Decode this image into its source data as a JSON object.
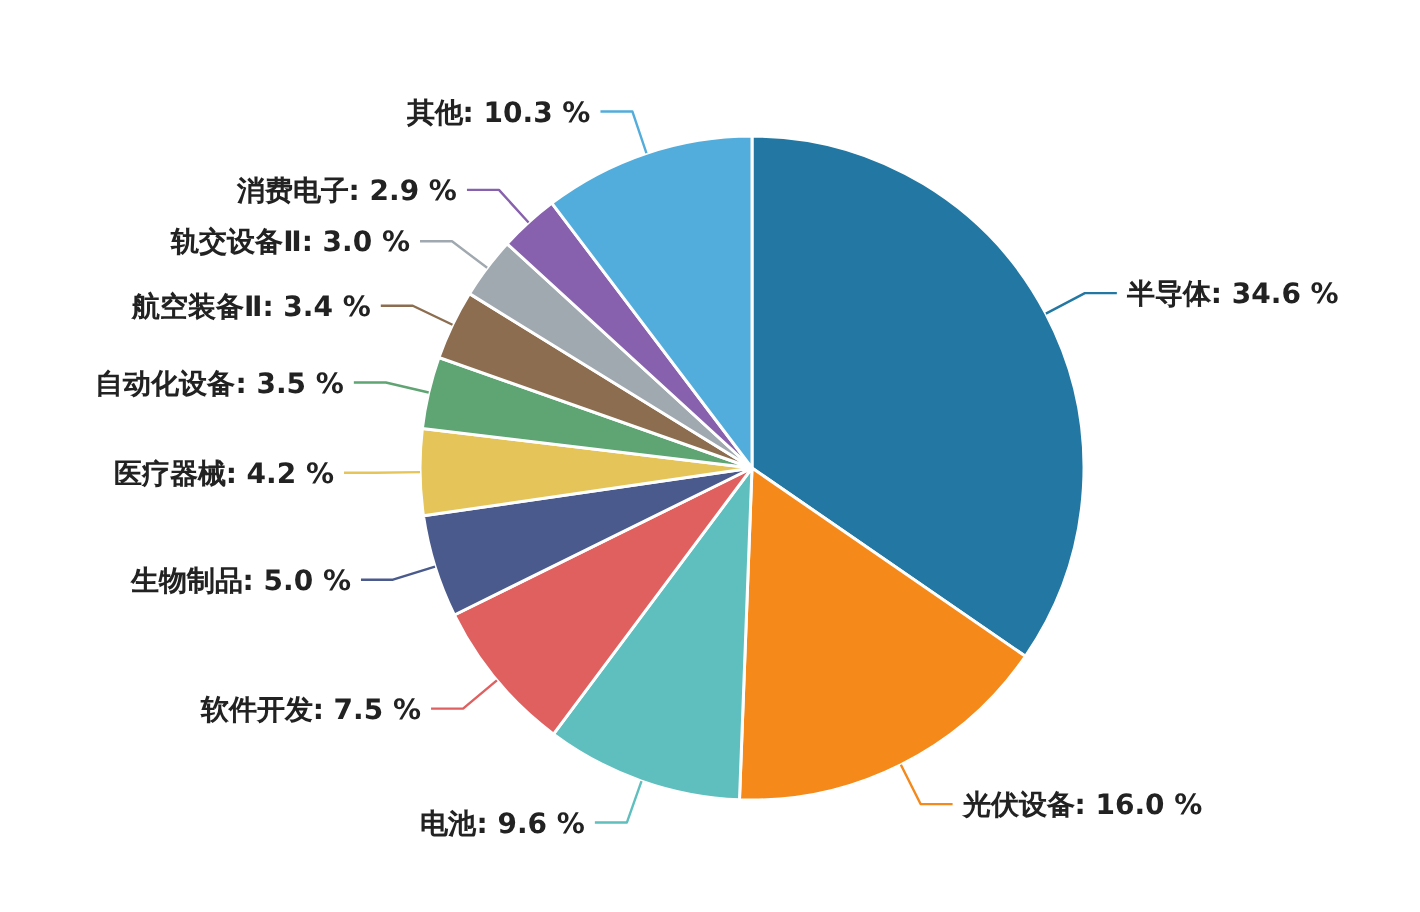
{
  "chart_data": {
    "type": "pie",
    "categories": [
      "半导体",
      "光伏设备",
      "电池",
      "软件开发",
      "生物制品",
      "医疗器械",
      "自动化设备",
      "航空装备Ⅱ",
      "轨交设备Ⅱ",
      "消费电子",
      "其他"
    ],
    "values": [
      34.6,
      16.0,
      9.6,
      7.5,
      5.0,
      4.2,
      3.5,
      3.4,
      3.0,
      2.9,
      10.3
    ],
    "value_labels": [
      "34.6 %",
      "16.0 %",
      "9.6 %",
      "7.5 %",
      "5.0 %",
      "4.2 %",
      "3.5 %",
      "3.4 %",
      "3.0 %",
      "2.9 %",
      "10.3 %"
    ],
    "colors": [
      "#2278a3",
      "#f5891a",
      "#5fbfbf",
      "#e06060",
      "#4a5a8c",
      "#e5c55a",
      "#5fa473",
      "#8c6d4f",
      "#a0a8b0",
      "#8761ad",
      "#52addc"
    ],
    "legend": false
  }
}
